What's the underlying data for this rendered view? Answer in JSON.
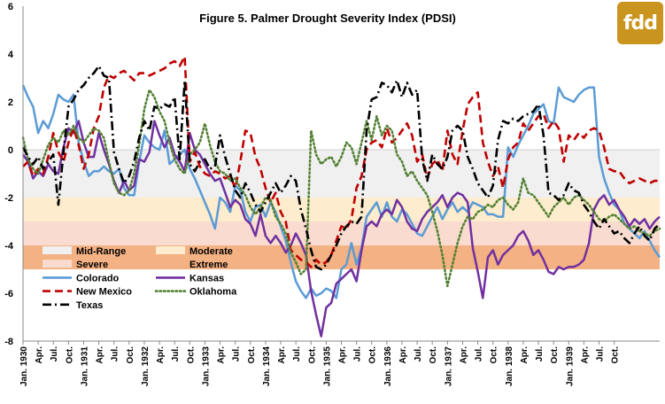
{
  "logo": {
    "text": "fdd",
    "color": "#c9951e"
  },
  "chart_data": {
    "type": "line",
    "title": "Figure 5. Palmer Drought Severity Index (PDSI)",
    "xlabel": "",
    "ylabel": "",
    "ylim": [
      -8,
      6
    ],
    "yticks": [
      -8,
      -6,
      -4,
      -2,
      0,
      2,
      4,
      6
    ],
    "grid": false,
    "legend_position": "bottom-left",
    "x_tick_labels": [
      "Jan. 1930",
      "Apr.",
      "Jul.",
      "Oct.",
      "Jan. 1931",
      "Apr.",
      "Jul.",
      "Oct.",
      "Jan. 1932",
      "Apr.",
      "Jul.",
      "Oct.",
      "Jan. 1933",
      "Apr.",
      "Jul.",
      "Oct.",
      "Jan. 1934",
      "Apr.",
      "Jul.",
      "Oct.",
      "Jan. 1935",
      "Apr.",
      "Jul.",
      "Oct.",
      "Jan. 1936",
      "Apr.",
      "Jul.",
      "Oct.",
      "Jan. 1937",
      "Apr.",
      "Jul.",
      "Oct.",
      "Jan. 1938",
      "Apr.",
      "Jul.",
      "Oct.",
      "Jan. 1939",
      "Apr.",
      "Jul.",
      "Oct."
    ],
    "bands": [
      {
        "name": "Mid-Range",
        "from": 0,
        "to": -2,
        "color": "#f0f0f0"
      },
      {
        "name": "Moderate",
        "from": -2,
        "to": -3,
        "color": "#fdeccd"
      },
      {
        "name": "Severe",
        "from": -3,
        "to": -4,
        "color": "#f9dccf"
      },
      {
        "name": "Extreme",
        "from": -4,
        "to": -5,
        "color": "#f4b183"
      }
    ],
    "series": [
      {
        "name": "Colorado",
        "color": "#5b9bd5",
        "dash": "solid",
        "values": [
          2.7,
          2.2,
          1.8,
          0.7,
          1.2,
          0.9,
          1.5,
          2.3,
          2.1,
          2.0,
          2.3,
          0.3,
          -0.5,
          -1.1,
          -0.9,
          -0.9,
          -0.7,
          -0.9,
          -1.0,
          -0.8,
          -1.6,
          -1.9,
          -1.9,
          -0.5,
          0.6,
          0.3,
          0.1,
          0.0,
          0.8,
          -0.6,
          -0.4,
          -0.2,
          0.0,
          -0.8,
          -1.2,
          -1.7,
          -2.2,
          -2.7,
          -3.3,
          -2.0,
          -2.2,
          -2.6,
          -1.5,
          -1.7,
          -2.6,
          -3.0,
          -2.4,
          -2.3,
          -2.8,
          -2.2,
          -2.6,
          -3.2,
          -3.8,
          -4.7,
          -5.5,
          -5.9,
          -6.2,
          -5.8,
          -6.1,
          -6.0,
          -5.8,
          -5.9,
          -6.2,
          -5.0,
          -4.8,
          -3.9,
          -4.8,
          -4.1,
          -2.8,
          -2.5,
          -2.2,
          -2.8,
          -2.2,
          -2.8,
          -3.0,
          -2.5,
          -2.7,
          -3.1,
          -3.5,
          -3.6,
          -3.2,
          -2.8,
          -2.4,
          -2.9,
          -2.5,
          -2.2,
          -2.6,
          -2.4,
          -2.6,
          -2.2,
          -2.3,
          -2.4,
          -2.7,
          -2.7,
          -2.8,
          -2.8,
          0.1,
          -0.3,
          0.2,
          0.6,
          1.0,
          1.5,
          1.7,
          1.9,
          1.2,
          1.1,
          2.6,
          2.2,
          2.1,
          2.0,
          2.3,
          2.5,
          2.6,
          2.6,
          -0.3,
          -1.2,
          -1.8,
          -2.3,
          -2.5,
          -3.1,
          -3.3,
          -3.5,
          -3.7,
          -3.4,
          -3.8,
          -4.2,
          -4.5
        ]
      },
      {
        "name": "Kansas",
        "color": "#7030a0",
        "dash": "solid",
        "values": [
          -0.2,
          -0.5,
          -1.2,
          -0.9,
          -1.1,
          -0.6,
          -0.9,
          -1.0,
          0.1,
          0.9,
          0.7,
          1.2,
          0.3,
          -0.3,
          -0.3,
          0.7,
          0.0,
          -0.6,
          -1.3,
          -1.8,
          -1.3,
          -1.7,
          -1.5,
          -0.4,
          -0.5,
          -0.1,
          1.2,
          0.6,
          0.1,
          0.5,
          -0.2,
          -0.5,
          -0.9,
          0.7,
          0.0,
          -0.2,
          -0.6,
          -1.0,
          -1.3,
          -1.2,
          -1.8,
          -2.4,
          -2.1,
          -2.3,
          -2.9,
          -3.1,
          -3.6,
          -2.7,
          -3.6,
          -3.9,
          -3.6,
          -3.9,
          -4.3,
          -4.0,
          -3.5,
          -3.9,
          -4.4,
          -5.9,
          -6.9,
          -7.8,
          -6.6,
          -6.4,
          -5.6,
          -5.4,
          -5.2,
          -5.0,
          -5.5,
          -4.2,
          -3.2,
          -3.0,
          -3.2,
          -2.7,
          -2.5,
          -2.7,
          -2.1,
          -2.4,
          -3.0,
          -3.3,
          -3.4,
          -2.9,
          -2.6,
          -2.4,
          -2.2,
          -1.9,
          -2.4,
          -2.0,
          -1.8,
          -1.9,
          -2.2,
          -4.1,
          -5.1,
          -6.2,
          -4.5,
          -4.2,
          -4.8,
          -4.4,
          -4.2,
          -4.0,
          -3.6,
          -3.4,
          -3.8,
          -4.4,
          -4.2,
          -4.6,
          -5.1,
          -5.2,
          -4.9,
          -5.0,
          -4.9,
          -4.9,
          -4.8,
          -4.6,
          -3.9,
          -2.5,
          -2.1,
          -1.9,
          -2.3,
          -2.1,
          -2.5,
          -2.8,
          -3.2,
          -2.9,
          -3.1,
          -2.9,
          -3.3,
          -3.0,
          -2.8
        ]
      },
      {
        "name": "New Mexico",
        "color": "#c00000",
        "dash": "dashed",
        "values": [
          -0.7,
          -0.5,
          -1.1,
          -0.8,
          -1.0,
          -0.3,
          0.7,
          -0.1,
          -0.5,
          0.3,
          0.9,
          0.2,
          -0.8,
          -0.2,
          0.9,
          1.4,
          2.6,
          3.1,
          3.0,
          3.2,
          3.3,
          3.1,
          2.9,
          3.2,
          3.2,
          3.1,
          3.2,
          3.3,
          3.4,
          3.6,
          3.7,
          3.5,
          3.9,
          -0.5,
          -0.1,
          -0.7,
          -1.0,
          -1.1,
          -0.9,
          -1.0,
          -1.2,
          -1.1,
          -1.6,
          -0.5,
          0.8,
          0.7,
          -0.3,
          -0.8,
          -1.6,
          -2.2,
          -1.8,
          -2.6,
          -3.0,
          -4.2,
          -4.4,
          -4.6,
          -4.7,
          -4.9,
          -4.6,
          -4.8,
          -4.7,
          -4.4,
          -3.8,
          -3.2,
          -3.3,
          -2.9,
          -1.6,
          -1.1,
          0.0,
          0.3,
          0.4,
          0.1,
          0.9,
          0.3,
          0.5,
          0.8,
          1.1,
          0.6,
          -0.5,
          -0.2,
          -1.2,
          -0.6,
          -0.4,
          -0.9,
          0.8,
          -0.2,
          -0.6,
          0.8,
          1.9,
          2.2,
          2.4,
          0.3,
          -0.5,
          -1.1,
          -0.7,
          -1.6,
          -0.4,
          0.1,
          0.3,
          1.1,
          0.8,
          1.1,
          1.4,
          1.5,
          0.9,
          1.2,
          0.9,
          -0.5,
          0.6,
          0.4,
          0.7,
          0.5,
          0.8,
          0.9,
          0.8,
          0.1,
          -0.8,
          -0.9,
          -0.9,
          -1.2,
          -1.4,
          -1.3,
          -1.2,
          -1.3,
          -1.4,
          -1.3,
          -1.3
        ]
      },
      {
        "name": "Oklahoma",
        "color": "#548235",
        "dash": "dotted",
        "values": [
          0.5,
          -0.4,
          -0.8,
          -1.0,
          -0.4,
          0.2,
          0.5,
          0.3,
          0.8,
          0.6,
          1.0,
          0.5,
          0.3,
          0.6,
          0.9,
          0.8,
          0.5,
          -0.5,
          -1.4,
          -1.8,
          -1.9,
          -1.7,
          -1.0,
          0.2,
          1.7,
          2.5,
          2.2,
          1.6,
          1.2,
          0.3,
          -0.4,
          -0.8,
          -1.0,
          -0.2,
          0.0,
          0.3,
          1.1,
          0.2,
          -0.5,
          -0.9,
          -1.0,
          -1.3,
          -1.2,
          -1.6,
          -1.9,
          -2.4,
          -2.7,
          -2.4,
          -2.0,
          -2.1,
          -2.8,
          -3.1,
          -3.5,
          -4.3,
          -4.7,
          -5.2,
          -5.0,
          0.8,
          -0.2,
          -0.6,
          -0.4,
          -0.3,
          -0.7,
          -0.3,
          0.3,
          0.1,
          -0.6,
          0.3,
          1.2,
          0.4,
          1.4,
          0.6,
          1.0,
          0.8,
          -0.2,
          -0.5,
          -1.1,
          -0.9,
          -1.3,
          -1.6,
          -1.9,
          -2.6,
          -3.4,
          -4.4,
          -5.7,
          -4.8,
          -3.9,
          -3.2,
          -2.8,
          -2.9,
          -2.6,
          -2.5,
          -2.3,
          -2.4,
          -2.1,
          -2.0,
          -2.3,
          -2.5,
          -2.2,
          -1.2,
          -1.8,
          -1.9,
          -2.2,
          -2.5,
          -2.8,
          -2.4,
          -2.2,
          -2.0,
          -2.3,
          -2.0,
          -1.9,
          -2.1,
          -2.3,
          -2.6,
          -2.9,
          -3.0,
          -2.8,
          -2.7,
          -2.9,
          -3.1,
          -3.3,
          -3.2,
          -3.4,
          -3.5,
          -3.6,
          -3.4,
          -3.3
        ]
      },
      {
        "name": "Texas",
        "color": "#000000",
        "dash": "dashdot",
        "values": [
          0.1,
          -0.3,
          -0.6,
          -0.3,
          -0.8,
          -0.5,
          -0.2,
          -2.3,
          -0.1,
          1.8,
          2.1,
          2.5,
          2.7,
          3.0,
          3.2,
          3.5,
          3.1,
          3.0,
          -0.1,
          -0.8,
          -1.4,
          -1.1,
          -0.5,
          0.5,
          1.2,
          0.8,
          1.8,
          1.7,
          1.9,
          1.8,
          2.2,
          -0.4,
          2.9,
          -0.6,
          -0.9,
          -0.5,
          -0.4,
          -0.8,
          -0.7,
          0.6,
          -0.3,
          -1.0,
          -1.7,
          -2.0,
          -1.4,
          -1.8,
          -2.3,
          -2.6,
          -2.2,
          -1.8,
          -1.4,
          -1.8,
          -1.5,
          -1.1,
          -1.3,
          -2.5,
          -3.3,
          -4.2,
          -4.9,
          -5.0,
          -4.8,
          -4.4,
          -4.0,
          -3.5,
          -3.2,
          -3.0,
          -3.1,
          -2.8,
          0.8,
          2.1,
          2.2,
          2.8,
          2.7,
          2.4,
          2.9,
          2.2,
          2.8,
          2.3,
          2.5,
          -0.4,
          -1.3,
          -0.2,
          -0.6,
          -0.8,
          -0.3,
          0.8,
          1.0,
          0.8,
          -0.3,
          -0.8,
          -1.4,
          -1.7,
          -2.0,
          -1.5,
          0.4,
          1.2,
          1.1,
          1.3,
          1.2,
          1.4,
          1.5,
          1.6,
          1.9,
          0.6,
          -1.8,
          -1.9,
          -2.1,
          -1.9,
          -1.4,
          -1.7,
          -1.8,
          -2.3,
          -2.6,
          -3.0,
          -3.3,
          -2.9,
          -3.2,
          -3.5,
          -3.4,
          -3.7,
          -3.9,
          -3.5,
          -3.2,
          -3.6,
          -3.8,
          -3.3,
          -3.1
        ]
      }
    ],
    "legend_entries": [
      {
        "label": "Mid-Range",
        "kind": "band",
        "ref": "Mid-Range"
      },
      {
        "label": "Moderate",
        "kind": "band",
        "ref": "Moderate"
      },
      {
        "label": "Severe",
        "kind": "band",
        "ref": "Severe"
      },
      {
        "label": "Extreme",
        "kind": "band",
        "ref": "Extreme"
      },
      {
        "label": "Colorado",
        "kind": "line",
        "ref": "Colorado"
      },
      {
        "label": "Kansas",
        "kind": "line",
        "ref": "Kansas"
      },
      {
        "label": "New Mexico",
        "kind": "line",
        "ref": "New Mexico"
      },
      {
        "label": "Oklahoma",
        "kind": "line",
        "ref": "Oklahoma"
      },
      {
        "label": "Texas",
        "kind": "line",
        "ref": "Texas"
      }
    ]
  }
}
